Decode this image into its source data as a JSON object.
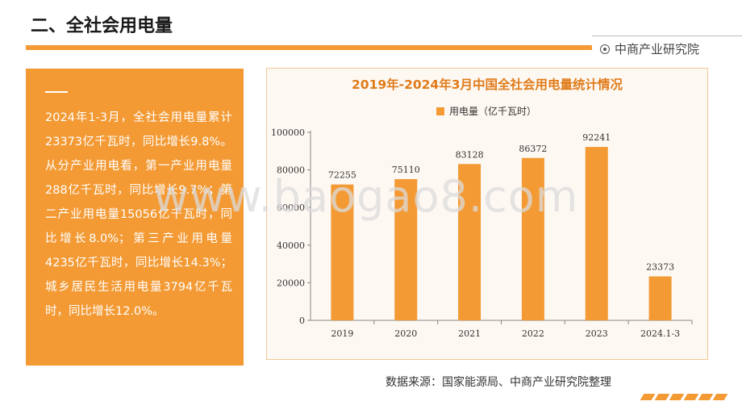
{
  "header": {
    "title": "二、全社会用电量",
    "brand": "中商产业研究院"
  },
  "summary": {
    "text": "2024年1-3月，全社会用电量累计23373亿千瓦时，同比增长9.8%。从分产业用电看，第一产业用电量288亿千瓦时，同比增长9.7%；第二产业用电量15056亿千瓦时，同比增长8.0%；第三产业用电量4235亿千瓦时，同比增长14.3%；城乡居民生活用电量3794亿千瓦时，同比增长12.0%。"
  },
  "watermark": "www.baogao8.com",
  "source": "数据来源：国家能源局、中商产业研究院整理",
  "colors": {
    "accent": "#f39a34",
    "title": "#e07b1a"
  },
  "chart_data": {
    "type": "bar",
    "title": "2019年-2024年3月中国全社会用电量统计情况",
    "categories": [
      "2019",
      "2020",
      "2021",
      "2022",
      "2023",
      "2024.1-3"
    ],
    "series": [
      {
        "name": "用电量（亿千瓦时）",
        "values": [
          72255,
          75110,
          83128,
          86372,
          92241,
          23373
        ]
      }
    ],
    "yticks": [
      "0",
      "20000",
      "40000",
      "60000",
      "80000",
      "100000"
    ],
    "ylim": [
      0,
      100000
    ],
    "grid": false,
    "legend": "top-center"
  }
}
